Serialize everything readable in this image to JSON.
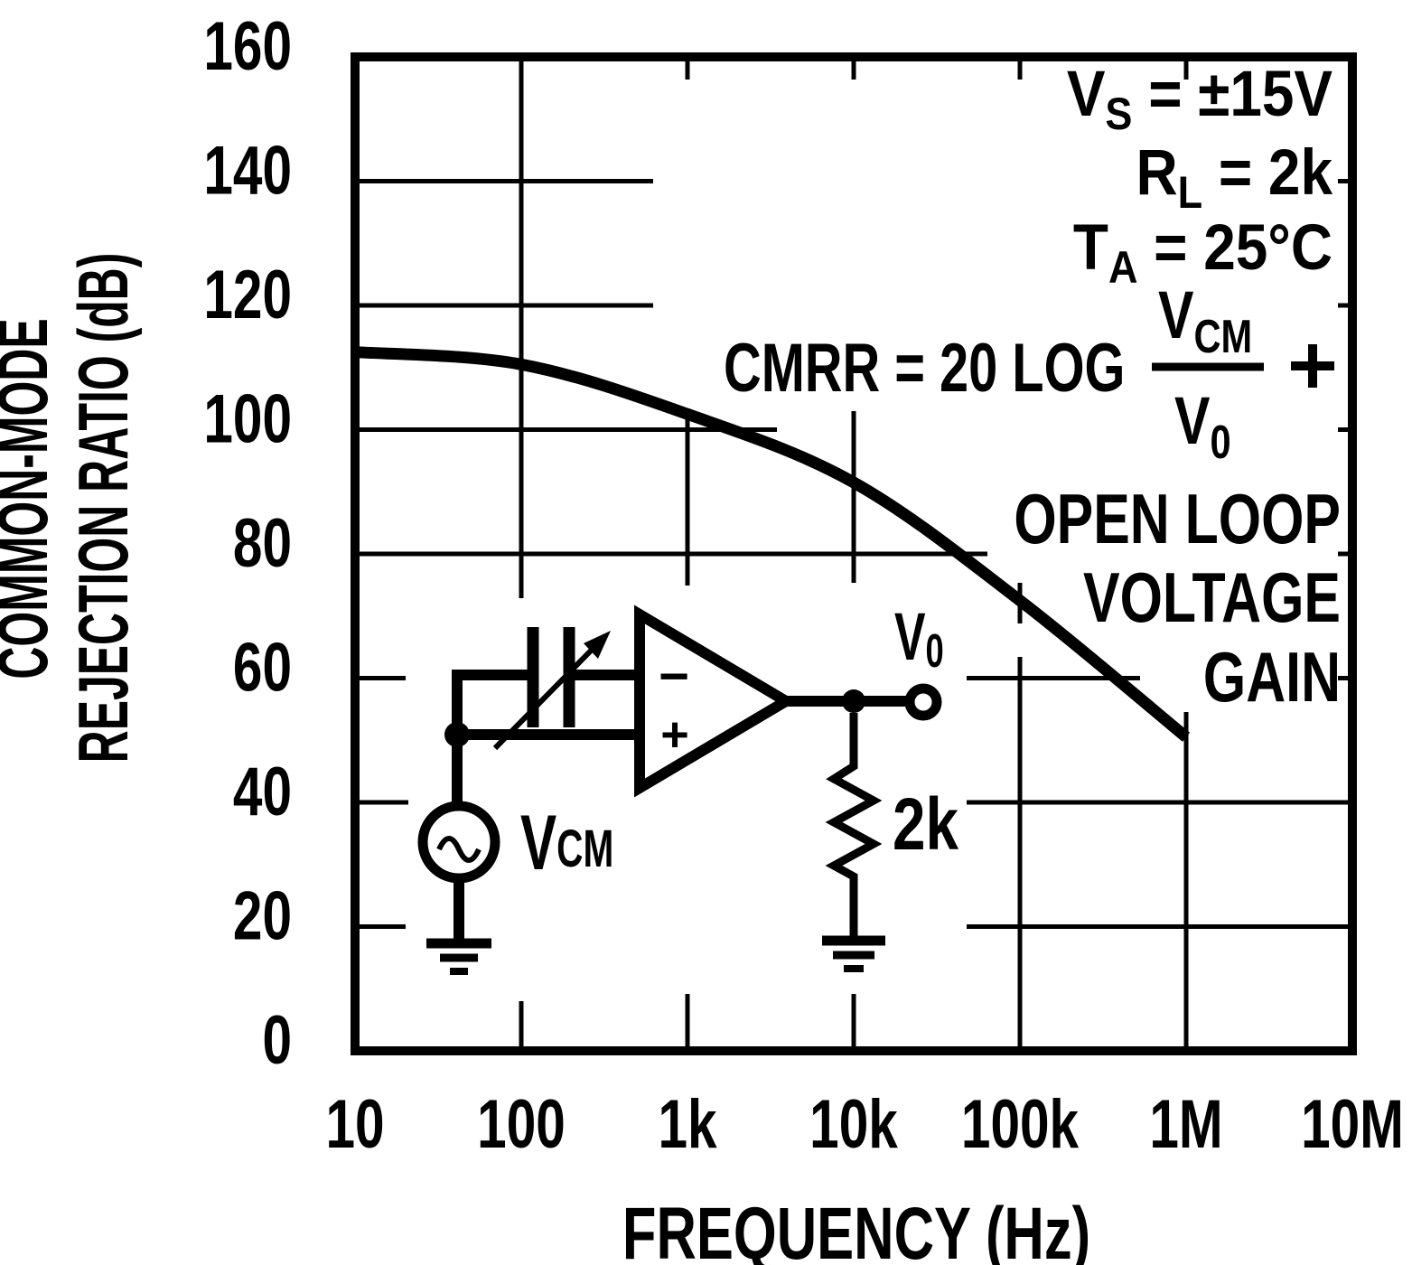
{
  "chart_data": {
    "type": "line",
    "title": "",
    "x_scale": "log",
    "x": [
      10,
      100,
      1000,
      10000,
      100000,
      1000000
    ],
    "values": [
      112.5,
      110.5,
      102.5,
      91.5,
      72.5,
      50.5
    ],
    "series_name": "CMRR",
    "xlim": [
      10,
      10000000
    ],
    "ylim": [
      0,
      160
    ],
    "x_tick_labels": [
      "10",
      "100",
      "1k",
      "10k",
      "100k",
      "1M",
      "10M"
    ],
    "y_tick_labels": [
      "0",
      "20",
      "40",
      "60",
      "80",
      "100",
      "120",
      "140",
      "160"
    ],
    "xlabel": "FREQUENCY (Hz)",
    "ylabel_line1": "COMMON-MODE",
    "ylabel_line2": "REJECTION RATIO (dB)",
    "grid": true,
    "legend": false
  },
  "annotations": {
    "conditions": [
      {
        "base": "V",
        "sub": "S",
        "rest": " = ±15V"
      },
      {
        "base": "R",
        "sub": "L",
        "rest": " = 2k"
      },
      {
        "base": "T",
        "sub": "A",
        "rest": " = 25°C"
      }
    ],
    "equation": {
      "lhs": "CMRR = 20 LOG",
      "numerator": {
        "base": "V",
        "sub": "CM"
      },
      "denominator": {
        "base": "V",
        "sub": "0"
      },
      "operator": "+",
      "rhs": [
        "OPEN LOOP",
        "VOLTAGE",
        "GAIN"
      ]
    }
  },
  "circuit": {
    "source_label": {
      "base": "V",
      "sub": "CM"
    },
    "output_label": {
      "base": "V",
      "sub": "0"
    },
    "load_label": "2k",
    "opamp_minus": "−",
    "opamp_plus": "+"
  },
  "colors": {
    "ink": "#000000",
    "background": "#ffffff"
  }
}
